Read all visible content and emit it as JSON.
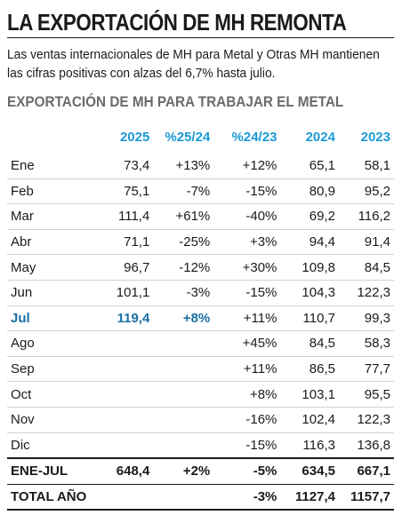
{
  "title": "LA EXPORTACIÓN DE MH REMONTA",
  "subtitle": "Las ventas internacionales de MH para Metal y Otras MH mantienen las cifras positivas con alzas del 6,7% hasta julio.",
  "section_title": "EXPORTACIÓN DE MH PARA TRABAJAR EL METAL",
  "colors": {
    "header": "#1a9ad6",
    "highlight": "#1a6fa3",
    "section": "#6b6b6b"
  },
  "table": {
    "headers": [
      "",
      "2025",
      "%25/24",
      "%24/23",
      "2024",
      "2023"
    ],
    "rows": [
      [
        "Ene",
        "73,4",
        "+13%",
        "+12%",
        "65,1",
        "58,1"
      ],
      [
        "Feb",
        "75,1",
        "-7%",
        "-15%",
        "80,9",
        "95,2"
      ],
      [
        "Mar",
        "111,4",
        "+61%",
        "-40%",
        "69,2",
        "116,2"
      ],
      [
        "Abr",
        "71,1",
        "-25%",
        "+3%",
        "94,4",
        "91,4"
      ],
      [
        "May",
        "96,7",
        "-12%",
        "+30%",
        "109,8",
        "84,5"
      ],
      [
        "Jun",
        "101,1",
        "-3%",
        "-15%",
        "104,3",
        "122,3"
      ],
      [
        "Jul",
        "119,4",
        "+8%",
        "+11%",
        "110,7",
        "99,3"
      ],
      [
        "Ago",
        "",
        "",
        "+45%",
        "84,5",
        "58,3"
      ],
      [
        "Sep",
        "",
        "",
        "+11%",
        "86,5",
        "77,7"
      ],
      [
        "Oct",
        "",
        "",
        "+8%",
        "103,1",
        "95,5"
      ],
      [
        "Nov",
        "",
        "",
        "-16%",
        "102,4",
        "122,3"
      ],
      [
        "Dic",
        "",
        "",
        "-15%",
        "116,3",
        "136,8"
      ]
    ],
    "totals": [
      [
        "ENE-JUL",
        "648,4",
        "+2%",
        "-5%",
        "634,5",
        "667,1"
      ],
      [
        "TOTAL AÑO",
        "",
        "",
        "-3%",
        "1127,4",
        "1157,7"
      ]
    ]
  }
}
